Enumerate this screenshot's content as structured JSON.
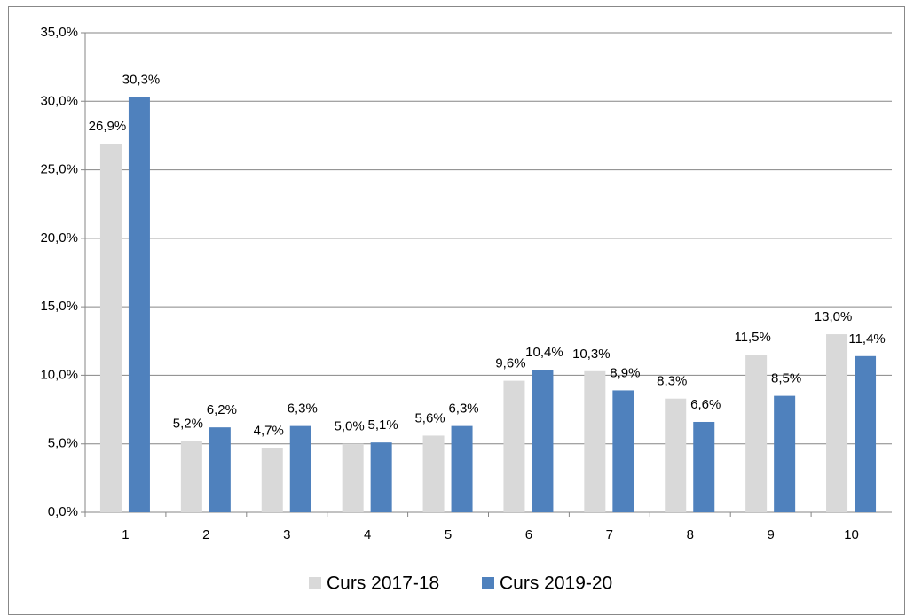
{
  "chart_data": {
    "type": "bar",
    "categories": [
      "1",
      "2",
      "3",
      "4",
      "5",
      "6",
      "7",
      "8",
      "9",
      "10"
    ],
    "series": [
      {
        "name": "Curs 2017-18",
        "color": "#d9d9d9",
        "values": [
          26.9,
          5.2,
          4.7,
          5.0,
          5.6,
          9.6,
          10.3,
          8.3,
          11.5,
          13.0
        ],
        "value_labels": [
          "26,9%",
          "5,2%",
          "4,7%",
          "5,0%",
          "5,6%",
          "9,6%",
          "10,3%",
          "8,3%",
          "11,5%",
          "13,0%"
        ]
      },
      {
        "name": "Curs 2019-20",
        "color": "#4f81bd",
        "values": [
          30.3,
          6.2,
          6.3,
          5.1,
          6.3,
          10.4,
          8.9,
          6.6,
          8.5,
          11.4
        ],
        "value_labels": [
          "30,3%",
          "6,2%",
          "6,3%",
          "5,1%",
          "6,3%",
          "10,4%",
          "8,9%",
          "6,6%",
          "8,5%",
          "11,4%"
        ]
      }
    ],
    "ylim": [
      0,
      35
    ],
    "yticks": [
      {
        "value": 0,
        "label": "0,0%"
      },
      {
        "value": 5,
        "label": "5,0%"
      },
      {
        "value": 10,
        "label": "10,0%"
      },
      {
        "value": 15,
        "label": "15,0%"
      },
      {
        "value": 20,
        "label": "20,0%"
      },
      {
        "value": 25,
        "label": "25,0%"
      },
      {
        "value": 30,
        "label": "30,0%"
      },
      {
        "value": 35,
        "label": "35,0%"
      }
    ],
    "grid": true,
    "legend": "bottom"
  }
}
